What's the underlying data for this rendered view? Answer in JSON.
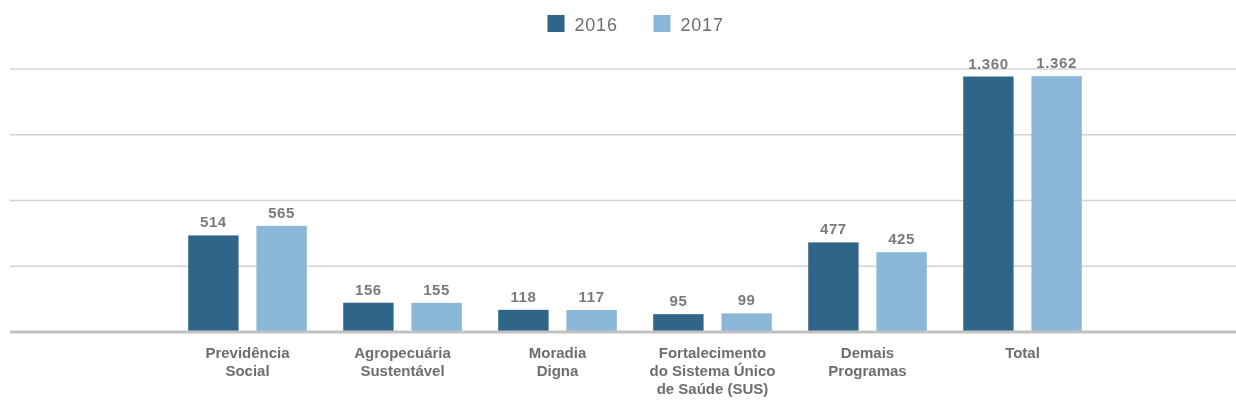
{
  "chart_data": {
    "type": "bar",
    "categories": [
      "Previdência\nSocial",
      "Agropecuária\nSustentável",
      "Moradia\nDigna",
      "Fortalecimento\ndo Sistema Único\nde Saúde (SUS)",
      "Demais\nProgramas",
      "Total"
    ],
    "series": [
      {
        "name": "2016",
        "color": "#2f6588",
        "values": [
          514,
          156,
          118,
          95,
          477,
          1360
        ],
        "value_labels": [
          "514",
          "156",
          "118",
          "95",
          "477",
          "1.360"
        ]
      },
      {
        "name": "2017",
        "color": "#8ab7d8",
        "values": [
          565,
          155,
          117,
          99,
          425,
          1362
        ],
        "value_labels": [
          "565",
          "155",
          "117",
          "99",
          "425",
          "1.362"
        ]
      }
    ],
    "ylim": [
      0,
      1400
    ],
    "yticks": [
      {
        "value": 0,
        "label": null
      },
      {
        "value": 350,
        "label": null
      },
      {
        "value": 700,
        "label": null
      },
      {
        "value": 1050,
        "label": null
      },
      {
        "value": 1400,
        "label": null
      }
    ],
    "grid": "y",
    "legend": "top",
    "tick_labels": "x"
  }
}
